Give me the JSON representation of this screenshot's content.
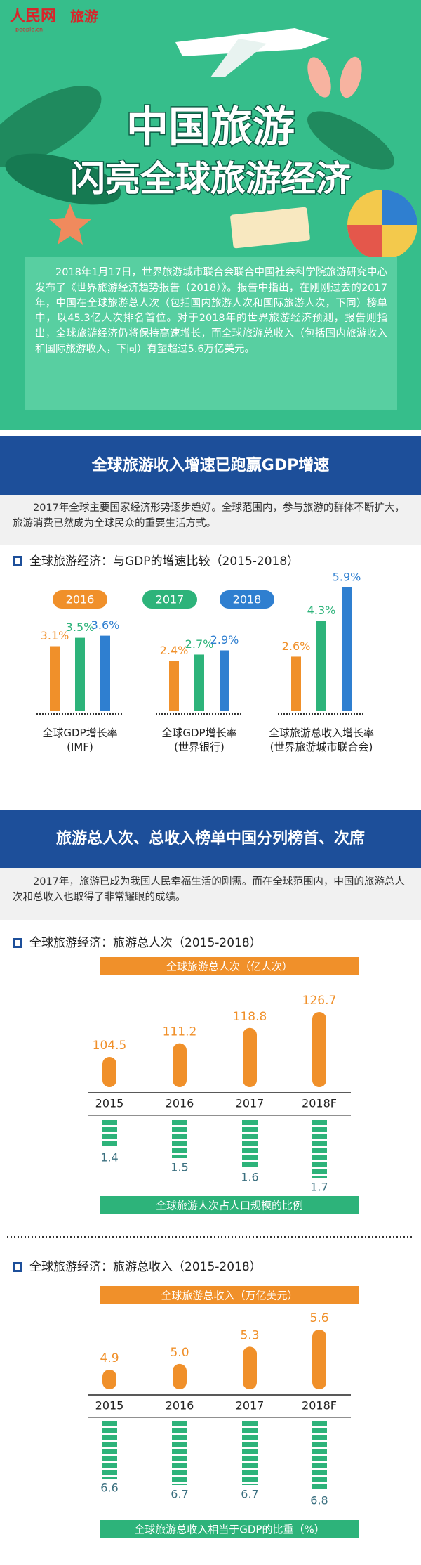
{
  "header": {
    "logo": "人民网",
    "logo_sub": "people.cn",
    "channel": "旅游",
    "title_line1": "中国旅游",
    "title_line2": "闪亮全球旅游经济",
    "intro": "2018年1月17日，世界旅游城市联合会联合中国社会科学院旅游研究中心发布了《世界旅游经济趋势报告（2018）》。报告中指出，在刚刚过去的2017年，中国在全球旅游总人次（包括国内旅游人次和国际旅游人次，下同）榜单中，以45.3亿人次排名首位。对于2018年的世界旅游经济预测，报告则指出，全球旅游经济仍将保持高速增长，而全球旅游总收入（包括国内旅游收入和国际旅游收入，下同）有望超过5.6万亿美元。"
  },
  "sections": [
    {
      "heading": "全球旅游收入增速已跑赢GDP增速",
      "text": "2017年全球主要国家经济形势逐步趋好。全球范围内，参与旅游的群体不断扩大，旅游消费已然成为全球民众的重要生活方式。"
    },
    {
      "heading": "旅游总人次、总收入榜单中国分列榜首、次席",
      "text": "2017年，旅游已成为我国人民幸福生活的刚需。而在全球范围内，中国的旅游总人次和总收入也取得了非常耀眼的成绩。"
    }
  ],
  "chart_data": [
    {
      "type": "grouped_bar",
      "title": "全球旅游经济：与GDP的增速比较（2015-2018）",
      "categories": [
        "全球GDP增长率\n(IMF)",
        "全球GDP增长率\n(世界银行)",
        "全球旅游总收入增长率\n(世界旅游城市联合会)"
      ],
      "series": [
        {
          "name": "2016",
          "color": "#f0902a",
          "values": [
            3.1,
            2.4,
            2.6
          ],
          "value_labels": [
            "3.1%",
            "2.4%",
            "2.6%"
          ]
        },
        {
          "name": "2017",
          "color": "#2db37a",
          "values": [
            3.5,
            2.7,
            4.3
          ],
          "value_labels": [
            "3.5%",
            "2.7%",
            "4.3%"
          ]
        },
        {
          "name": "2018",
          "color": "#2f7fd0",
          "values": [
            3.6,
            2.9,
            5.9
          ],
          "value_labels": [
            "3.6%",
            "2.9%",
            "5.9%"
          ]
        }
      ]
    },
    {
      "type": "pictorial_bar",
      "title": "全球旅游经济：旅游总人次（2015-2018）",
      "categories": [
        "2015",
        "2016",
        "2017",
        "2018F"
      ],
      "series": [
        {
          "name": "全球旅游总人次（亿人次）",
          "color": "#f0902a",
          "values": [
            104.5,
            111.2,
            118.8,
            126.7
          ]
        },
        {
          "name": "全球旅游人次占人口规模的比例",
          "color": "#2db37a",
          "values": [
            1.4,
            1.5,
            1.6,
            1.7
          ]
        }
      ]
    },
    {
      "type": "pictorial_bar",
      "title": "全球旅游经济：旅游总收入（2015-2018）",
      "categories": [
        "2015",
        "2016",
        "2017",
        "2018F"
      ],
      "series": [
        {
          "name": "全球旅游总收入（万亿美元）",
          "color": "#f0902a",
          "values": [
            4.9,
            5.0,
            5.3,
            5.6
          ],
          "value_labels": [
            "4.9",
            "5.0",
            "5.3",
            "5.6"
          ]
        },
        {
          "name": "全球旅游总收入相当于GDP的比重（%）",
          "color": "#2db37a",
          "values": [
            6.6,
            6.7,
            6.7,
            6.8
          ]
        }
      ]
    }
  ]
}
